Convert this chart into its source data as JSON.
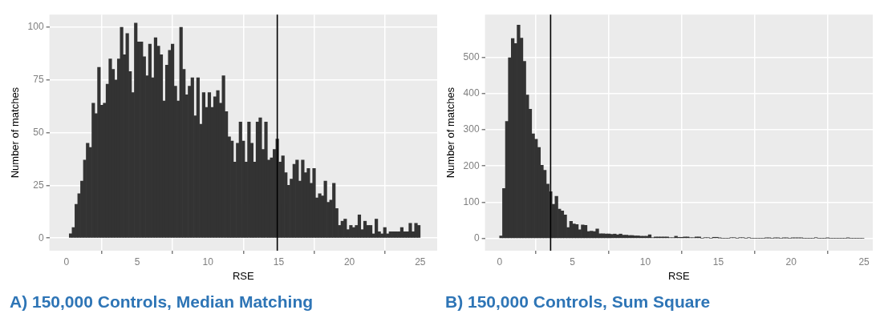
{
  "chart_data": [
    {
      "type": "histogram",
      "title": "A) 150,000 Controls, Median Matching",
      "xlabel": "RSE",
      "ylabel": "Number of matches",
      "color": "#333333",
      "xlim": [
        -1.2,
        26.2
      ],
      "ylim": [
        -6,
        106
      ],
      "xticks": [
        0,
        5,
        10,
        15,
        20,
        25
      ],
      "yticks": [
        0,
        25,
        50,
        75,
        100
      ],
      "grid": true,
      "bins": [
        0.2,
        0.4,
        0.6,
        0.8,
        1.0,
        1.2,
        1.4,
        1.6,
        1.8,
        2.0,
        2.2,
        2.4,
        2.6,
        2.8,
        3.0,
        3.2,
        3.4,
        3.6,
        3.8,
        4.0,
        4.2,
        4.4,
        4.6,
        4.8,
        5.0,
        5.2,
        5.4,
        5.6,
        5.8,
        6.0,
        6.2,
        6.4,
        6.6,
        6.8,
        7.0,
        7.2,
        7.4,
        7.6,
        7.8,
        8.0,
        8.2,
        8.4,
        8.6,
        8.8,
        9.0,
        9.2,
        9.4,
        9.6,
        9.8,
        10.0,
        10.2,
        10.4,
        10.6,
        10.8,
        11.0,
        11.2,
        11.4,
        11.6,
        11.8,
        12.0,
        12.2,
        12.4,
        12.6,
        12.8,
        13.0,
        13.2,
        13.4,
        13.6,
        13.8,
        14.0,
        14.2,
        14.4,
        14.6,
        14.8,
        15.0,
        15.2,
        15.4,
        15.6,
        15.8,
        16.0,
        16.2,
        16.4,
        16.6,
        16.8,
        17.0,
        17.2,
        17.4,
        17.6,
        17.8,
        18.0,
        18.2,
        18.4,
        18.6,
        18.8,
        19.0,
        19.2,
        19.4,
        19.6,
        19.8,
        20.0,
        20.2,
        20.4,
        20.6,
        20.8,
        21.0,
        21.2,
        21.4,
        21.6,
        21.8,
        22.0,
        22.2,
        22.4,
        22.6,
        22.8,
        23.0,
        23.2,
        23.4,
        23.6,
        23.8,
        24.0,
        24.2,
        24.4,
        24.6,
        24.8,
        25.0
      ],
      "values": [
        2,
        5,
        16,
        21,
        27,
        37,
        45,
        43,
        64,
        59,
        81,
        63,
        64,
        73,
        85,
        80,
        75,
        85,
        100,
        87,
        97,
        79,
        69,
        102,
        93,
        93,
        86,
        77,
        92,
        76,
        95,
        91,
        87,
        65,
        82,
        89,
        92,
        72,
        65,
        100,
        80,
        68,
        72,
        76,
        58,
        76,
        54,
        69,
        62,
        69,
        62,
        67,
        70,
        64,
        77,
        60,
        48,
        46,
        36,
        45,
        55,
        46,
        36,
        55,
        45,
        36,
        55,
        57,
        42,
        55,
        37,
        38,
        42,
        47,
        36,
        39,
        31,
        25,
        28,
        35,
        37,
        27,
        37,
        31,
        33,
        26,
        33,
        19,
        21,
        20,
        27,
        17,
        18,
        26,
        14,
        6,
        8,
        9,
        4,
        6,
        5,
        6,
        11,
        4,
        8,
        6,
        6,
        2,
        9,
        3,
        2,
        5,
        2,
        3,
        3,
        3,
        3,
        5,
        3,
        3,
        7,
        3,
        7,
        6
      ],
      "ref_lines": [
        {
          "axis": "x",
          "value": 14.9,
          "color": "#000000"
        }
      ]
    },
    {
      "type": "histogram",
      "title": "B) 150,000 Controls, Sum Square",
      "xlabel": "RSE",
      "ylabel": "Number of matches",
      "color": "#333333",
      "xlim": [
        -1.0,
        25.6
      ],
      "ylim": [
        -34,
        618
      ],
      "xticks": [
        0,
        5,
        10,
        15,
        20,
        25
      ],
      "yticks": [
        0,
        100,
        200,
        300,
        400,
        500
      ],
      "grid": true,
      "bins": [
        0.0,
        0.2,
        0.4,
        0.6,
        0.8,
        1.0,
        1.2,
        1.4,
        1.6,
        1.8,
        2.0,
        2.2,
        2.4,
        2.6,
        2.8,
        3.0,
        3.2,
        3.4,
        3.6,
        3.8,
        4.0,
        4.2,
        4.4,
        4.6,
        4.8,
        5.0,
        5.2,
        5.4,
        5.6,
        5.8,
        6.0,
        6.2,
        6.4,
        6.6,
        6.8,
        7.0,
        7.2,
        7.4,
        7.6,
        7.8,
        8.0,
        8.2,
        8.4,
        8.6,
        8.8,
        9.0,
        9.2,
        9.4,
        9.6,
        9.8,
        10.0,
        10.2,
        10.4,
        10.6,
        10.8,
        11.0,
        11.2,
        11.4,
        11.6,
        11.8,
        12.0,
        12.2,
        12.4,
        12.6,
        12.8,
        13.0,
        13.2,
        13.4,
        13.6,
        13.8,
        14.0,
        14.2,
        14.4,
        14.6,
        14.8,
        15.0,
        15.2,
        15.4,
        15.6,
        15.8,
        16.0,
        16.2,
        16.4,
        16.6,
        16.8,
        17.0,
        17.2,
        17.4,
        17.6,
        17.8,
        18.0,
        18.2,
        18.4,
        18.6,
        18.8,
        19.0,
        19.2,
        19.4,
        19.6,
        19.8,
        20.0,
        20.2,
        20.4,
        20.6,
        20.8,
        21.0,
        21.2,
        21.4,
        21.6,
        21.8,
        22.0,
        22.2,
        22.4,
        22.6,
        22.8,
        23.0,
        23.2,
        23.4,
        23.6,
        23.8,
        24.0,
        24.2,
        24.4,
        24.6,
        24.8,
        25.0
      ],
      "values": [
        7,
        138,
        323,
        499,
        552,
        538,
        589,
        553,
        489,
        396,
        357,
        289,
        274,
        251,
        202,
        188,
        150,
        129,
        94,
        116,
        81,
        76,
        65,
        30,
        47,
        40,
        38,
        24,
        37,
        36,
        19,
        20,
        19,
        26,
        13,
        13,
        12,
        12,
        11,
        12,
        10,
        12,
        9,
        9,
        8,
        8,
        7,
        7,
        6,
        6,
        6,
        10,
        2,
        4,
        4,
        4,
        4,
        4,
        2,
        2,
        6,
        3,
        3,
        4,
        4,
        2,
        2,
        4,
        4,
        0,
        2,
        2,
        0,
        3,
        3,
        1,
        0,
        0,
        0,
        2,
        2,
        0,
        2,
        2,
        0,
        2,
        0,
        0,
        0,
        0,
        0,
        1,
        1,
        0,
        1,
        1,
        0,
        1,
        1,
        0,
        1,
        1,
        1,
        1,
        0,
        0,
        0,
        0,
        2,
        0,
        0,
        0,
        1,
        0,
        0,
        0,
        0,
        0,
        0,
        1,
        0,
        0,
        0,
        0,
        0
      ],
      "ref_lines": [
        {
          "axis": "x",
          "value": 3.5,
          "color": "#000000"
        }
      ]
    }
  ]
}
